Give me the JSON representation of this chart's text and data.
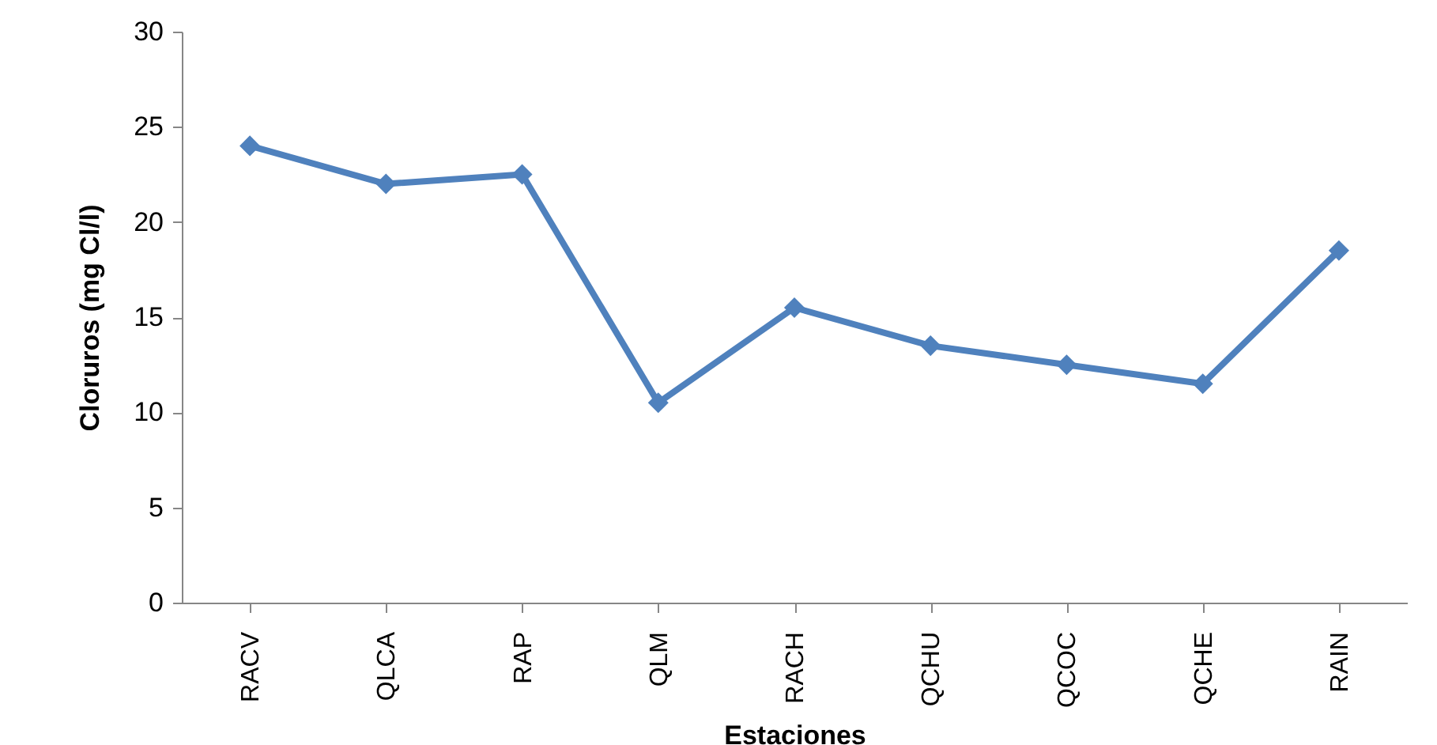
{
  "chart_data": {
    "type": "line",
    "xlabel": "Estaciones",
    "ylabel": "Cloruros (mg Cl/l)",
    "categories": [
      "RACV",
      "QLCA",
      "RAP",
      "QLM",
      "RACH",
      "QCHU",
      "QCOC",
      "QCHE",
      "RAIN"
    ],
    "series": [
      {
        "color": "#4f81bd",
        "values": [
          24,
          22,
          22.5,
          10.5,
          15.5,
          13.5,
          12.5,
          11.5,
          18.5
        ]
      }
    ],
    "ylim": [
      0,
      30
    ],
    "yticks": [
      0,
      5,
      10,
      15,
      20,
      25,
      30
    ],
    "grid": false,
    "legend": false,
    "marker": "diamond",
    "line_style": "solid"
  }
}
